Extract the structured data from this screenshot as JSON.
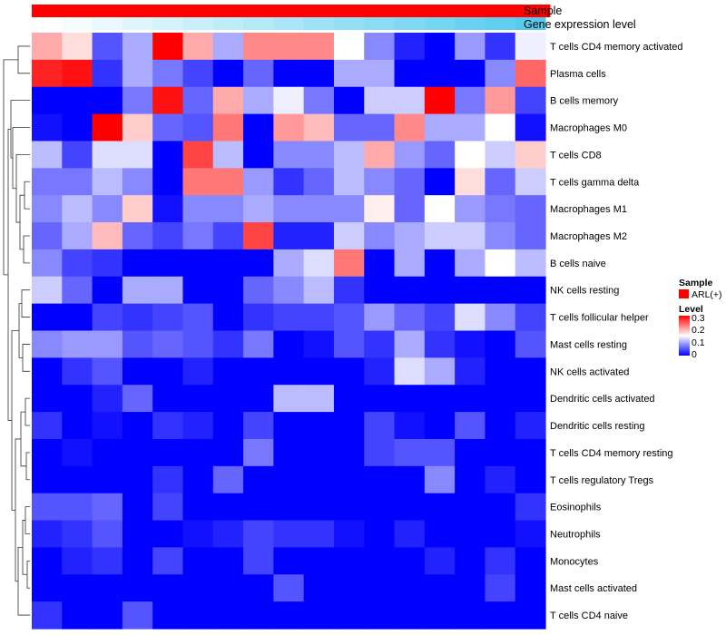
{
  "chart_data": {
    "type": "heatmap",
    "title": "",
    "column_annotations": [
      {
        "name": "Sample",
        "color": "#ff0000"
      },
      {
        "name": "Gene expression level",
        "gradient": [
          "#ffffff",
          "#55ccee"
        ]
      }
    ],
    "row_labels": [
      "T cells CD4 memory activated",
      "Plasma cells",
      "B cells memory",
      "Macrophages M0",
      "T cells CD8",
      "T cells gamma delta",
      "Macrophages M1",
      "Macrophages M2",
      "B cells naive",
      "NK cells resting",
      "T cells follicular helper",
      "Mast cells resting",
      "NK cells activated",
      "Dendritic cells activated",
      "Dendritic cells resting",
      "T cells CD4 memory resting",
      "T cells regulatory  Tregs",
      "Eosinophils",
      "Neutrophils",
      "Monocytes",
      "Mast cells activated",
      "T cells CD4 naive"
    ],
    "values": [
      [
        0.2,
        0.17,
        0.05,
        0.1,
        0.3,
        0.2,
        0.1,
        0.22,
        0.22,
        0.22,
        0.15,
        0.08,
        0.02,
        0.0,
        0.09,
        0.03,
        0.14
      ],
      [
        0.28,
        0.29,
        0.03,
        0.1,
        0.07,
        0.04,
        0.0,
        0.06,
        0.0,
        0.0,
        0.1,
        0.1,
        0.0,
        0.0,
        0.0,
        0.08,
        0.24
      ],
      [
        0.0,
        0.0,
        0.0,
        0.07,
        0.29,
        0.06,
        0.2,
        0.1,
        0.14,
        0.07,
        0.0,
        0.12,
        0.12,
        0.3,
        0.07,
        0.21,
        0.04
      ],
      [
        0.01,
        0.0,
        0.3,
        0.18,
        0.06,
        0.05,
        0.23,
        0.0,
        0.21,
        0.19,
        0.06,
        0.06,
        0.22,
        0.1,
        0.1,
        0.15,
        0.01
      ],
      [
        0.11,
        0.04,
        0.13,
        0.13,
        0.0,
        0.26,
        0.11,
        0.0,
        0.08,
        0.08,
        0.11,
        0.2,
        0.09,
        0.06,
        0.15,
        0.12,
        0.18
      ],
      [
        0.07,
        0.07,
        0.11,
        0.08,
        0.0,
        0.23,
        0.23,
        0.09,
        0.03,
        0.06,
        0.11,
        0.08,
        0.06,
        0.0,
        0.17,
        0.06,
        0.12
      ],
      [
        0.08,
        0.11,
        0.08,
        0.18,
        0.01,
        0.08,
        0.08,
        0.1,
        0.08,
        0.08,
        0.08,
        0.16,
        0.06,
        0.15,
        0.09,
        0.07,
        0.06
      ],
      [
        0.06,
        0.1,
        0.19,
        0.06,
        0.04,
        0.07,
        0.04,
        0.26,
        0.02,
        0.02,
        0.12,
        0.08,
        0.1,
        0.12,
        0.12,
        0.08,
        0.06
      ],
      [
        0.08,
        0.04,
        0.03,
        0.0,
        0.0,
        0.0,
        0.0,
        0.0,
        0.1,
        0.13,
        0.23,
        0.0,
        0.1,
        0.0,
        0.1,
        0.15,
        0.11
      ],
      [
        0.12,
        0.06,
        0.0,
        0.1,
        0.1,
        0.0,
        0.0,
        0.06,
        0.08,
        0.11,
        0.03,
        0.0,
        0.0,
        0.0,
        0.0,
        0.0,
        0.0
      ],
      [
        0.0,
        0.0,
        0.04,
        0.03,
        0.04,
        0.05,
        0.0,
        0.03,
        0.04,
        0.04,
        0.05,
        0.09,
        0.06,
        0.04,
        0.13,
        0.08,
        0.04
      ],
      [
        0.08,
        0.09,
        0.09,
        0.05,
        0.06,
        0.05,
        0.03,
        0.07,
        0.0,
        0.01,
        0.05,
        0.03,
        0.1,
        0.03,
        0.01,
        0.0,
        0.05
      ],
      [
        0.0,
        0.03,
        0.05,
        0.0,
        0.0,
        0.02,
        0.0,
        0.0,
        0.0,
        0.0,
        0.0,
        0.02,
        0.13,
        0.1,
        0.02,
        0.0,
        0.0
      ],
      [
        0.0,
        0.0,
        0.02,
        0.06,
        0.0,
        0.0,
        0.0,
        0.0,
        0.11,
        0.11,
        0.0,
        0.0,
        0.0,
        0.0,
        0.0,
        0.0,
        0.0
      ],
      [
        0.03,
        0.0,
        0.01,
        0.0,
        0.03,
        0.02,
        0.0,
        0.04,
        0.0,
        0.0,
        0.0,
        0.04,
        0.01,
        0.0,
        0.05,
        0.0,
        0.02
      ],
      [
        0.0,
        0.01,
        0.0,
        0.0,
        0.0,
        0.0,
        0.0,
        0.07,
        0.0,
        0.0,
        0.0,
        0.04,
        0.05,
        0.05,
        0.0,
        0.0,
        0.0
      ],
      [
        0.0,
        0.0,
        0.0,
        0.0,
        0.03,
        0.0,
        0.06,
        0.0,
        0.0,
        0.0,
        0.0,
        0.0,
        0.0,
        0.08,
        0.0,
        0.02,
        0.0
      ],
      [
        0.05,
        0.05,
        0.06,
        0.0,
        0.04,
        0.0,
        0.0,
        0.0,
        0.0,
        0.0,
        0.0,
        0.0,
        0.0,
        0.0,
        0.0,
        0.0,
        0.03
      ],
      [
        0.02,
        0.03,
        0.05,
        0.0,
        0.0,
        0.01,
        0.02,
        0.04,
        0.03,
        0.03,
        0.01,
        0.0,
        0.02,
        0.0,
        0.0,
        0.0,
        0.01
      ],
      [
        0.0,
        0.02,
        0.03,
        0.0,
        0.04,
        0.0,
        0.0,
        0.04,
        0.0,
        0.0,
        0.0,
        0.0,
        0.0,
        0.02,
        0.0,
        0.03,
        0.0
      ],
      [
        0.0,
        0.0,
        0.0,
        0.0,
        0.0,
        0.0,
        0.0,
        0.0,
        0.05,
        0.0,
        0.0,
        0.0,
        0.0,
        0.0,
        0.0,
        0.04,
        0.0
      ],
      [
        0.03,
        0.0,
        0.0,
        0.05,
        0.0,
        0.0,
        0.0,
        0.0,
        0.0,
        0.0,
        0.0,
        0.0,
        0.0,
        0.0,
        0.0,
        0.0,
        0.0
      ]
    ],
    "color_scale": {
      "colors": [
        "#0000ff",
        "#ffffff",
        "#ff0000"
      ],
      "domain": [
        0,
        0.15,
        0.3
      ]
    },
    "legend": {
      "sample_title": "Sample",
      "sample_item": "ARL(+)",
      "sample_color": "#ff0000",
      "level_title": "Level",
      "level_ticks": [
        "0.3",
        "0.2",
        "0.1",
        "0"
      ]
    }
  }
}
